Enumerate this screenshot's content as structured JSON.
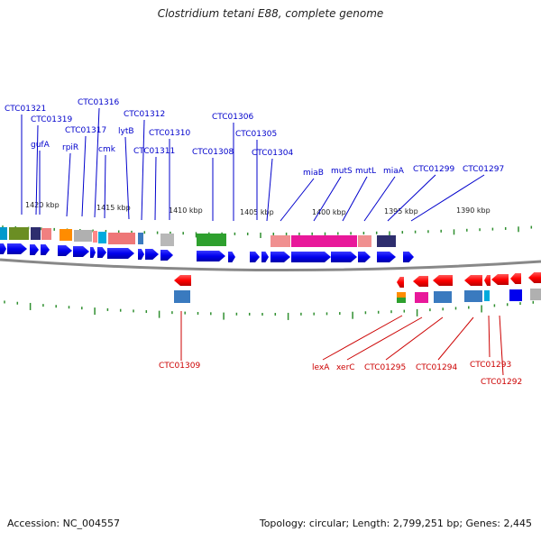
{
  "title": "Clostridium tetani E88, complete genome",
  "footer": {
    "accession": "Accession: NC_004557",
    "stats": "Topology: circular; Length: 2,799,251 bp; Genes: 2,445"
  },
  "colors": {
    "forward_arrow": "#0000ee",
    "reverse_arrow": "#ff0000",
    "forward_label": "#0000cc",
    "reverse_label": "#cc0000",
    "tick": "#2f8f2f",
    "backbone": "#888888"
  },
  "scale_labels": [
    "1420 kbp",
    "1415 kbp",
    "1410 kbp",
    "1405 kbp",
    "1400 kbp",
    "1395 kbp",
    "1390 kbp"
  ],
  "forward_genes": [
    "CTC01321",
    "CTC01319",
    "gufA",
    "rpiR",
    "CTC01317",
    "CTC01316",
    "cmk",
    "lytB",
    "CTC01312",
    "CTC01311",
    "CTC01310",
    "CTC01308",
    "CTC01306",
    "CTC01305",
    "CTC01304",
    "miaB",
    "mutS",
    "mutL",
    "miaA",
    "CTC01299",
    "CTC01297"
  ],
  "reverse_genes": [
    "CTC01309",
    "lexA",
    "xerC",
    "CTC01295",
    "CTC01294",
    "CTC01293",
    "CTC01292"
  ]
}
